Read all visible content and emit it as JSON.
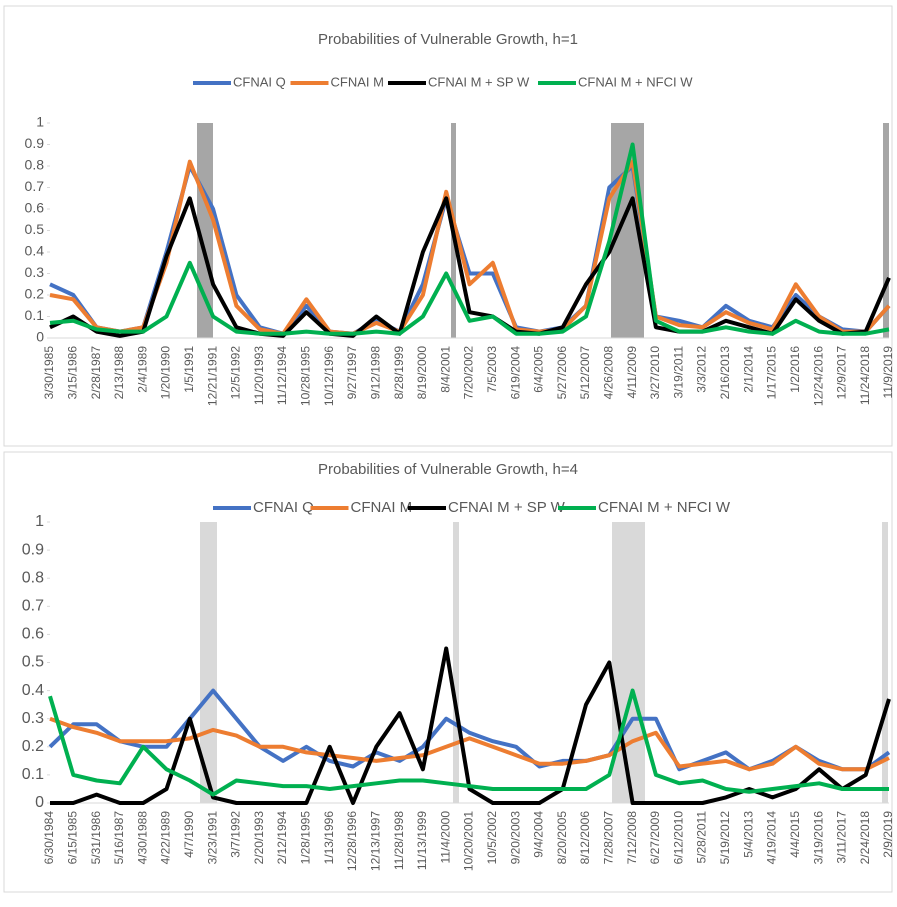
{
  "chart_data": [
    {
      "type": "line",
      "title": "Probabilities of Vulnerable Growth, h=1",
      "categories": [
        "3/30/1985",
        "3/15/1986",
        "2/28/1987",
        "2/13/1988",
        "2/4/1989",
        "1/20/1990",
        "1/5/1991",
        "12/21/1991",
        "12/5/1992",
        "11/20/1993",
        "11/12/1994",
        "10/28/1995",
        "10/12/1996",
        "9/27/1997",
        "9/12/1998",
        "8/28/1999",
        "8/19/2000",
        "8/4/2001",
        "7/20/2002",
        "7/5/2003",
        "6/19/2004",
        "6/4/2005",
        "5/27/2006",
        "5/12/2007",
        "4/26/2008",
        "4/11/2009",
        "3/27/2010",
        "3/19/2011",
        "3/3/2012",
        "2/16/2013",
        "2/1/2014",
        "1/17/2015",
        "1/2/2016",
        "12/24/2016",
        "12/9/2017",
        "11/24/2018",
        "11/9/2019"
      ],
      "series": [
        {
          "name": "CFNAI Q",
          "color": "#4472c4",
          "values": [
            0.25,
            0.2,
            0.05,
            0.03,
            0.05,
            0.4,
            0.8,
            0.6,
            0.2,
            0.05,
            0.02,
            0.15,
            0.03,
            0.02,
            0.08,
            0.03,
            0.25,
            0.65,
            0.3,
            0.3,
            0.05,
            0.03,
            0.05,
            0.15,
            0.7,
            0.8,
            0.1,
            0.08,
            0.05,
            0.15,
            0.08,
            0.05,
            0.2,
            0.1,
            0.04,
            0.03,
            0.15
          ]
        },
        {
          "name": "CFNAI M",
          "color": "#ed7d31",
          "values": [
            0.2,
            0.18,
            0.05,
            0.03,
            0.05,
            0.35,
            0.82,
            0.55,
            0.15,
            0.04,
            0.02,
            0.18,
            0.03,
            0.02,
            0.07,
            0.03,
            0.2,
            0.68,
            0.25,
            0.35,
            0.04,
            0.03,
            0.04,
            0.15,
            0.65,
            0.82,
            0.1,
            0.06,
            0.05,
            0.12,
            0.07,
            0.04,
            0.25,
            0.1,
            0.03,
            0.03,
            0.15
          ]
        },
        {
          "name": "CFNAI M + SP W",
          "color": "#000000",
          "values": [
            0.05,
            0.1,
            0.03,
            0.01,
            0.03,
            0.38,
            0.65,
            0.25,
            0.05,
            0.02,
            0.01,
            0.12,
            0.02,
            0.01,
            0.1,
            0.02,
            0.4,
            0.65,
            0.12,
            0.1,
            0.03,
            0.02,
            0.05,
            0.25,
            0.4,
            0.65,
            0.05,
            0.03,
            0.03,
            0.08,
            0.05,
            0.02,
            0.18,
            0.08,
            0.02,
            0.03,
            0.28
          ]
        },
        {
          "name": "CFNAI M + NFCI W",
          "color": "#00b050",
          "values": [
            0.07,
            0.08,
            0.04,
            0.03,
            0.03,
            0.1,
            0.35,
            0.1,
            0.03,
            0.02,
            0.02,
            0.03,
            0.02,
            0.02,
            0.03,
            0.02,
            0.1,
            0.3,
            0.08,
            0.1,
            0.02,
            0.02,
            0.03,
            0.1,
            0.45,
            0.9,
            0.08,
            0.03,
            0.03,
            0.05,
            0.03,
            0.02,
            0.08,
            0.03,
            0.02,
            0.02,
            0.04
          ]
        }
      ],
      "ylim": [
        0,
        1
      ],
      "yticks": [
        0,
        0.1,
        0.2,
        0.3,
        0.4,
        0.5,
        0.6,
        0.7,
        0.8,
        0.9,
        1
      ],
      "legend": "top"
    },
    {
      "type": "line",
      "title": "Probabilities of Vulnerable Growth, h=4",
      "categories": [
        "6/30/1984",
        "6/15/1985",
        "5/31/1986",
        "5/16/1987",
        "4/30/1988",
        "4/22/1989",
        "4/7/1990",
        "3/23/1991",
        "3/7/1992",
        "2/20/1993",
        "2/12/1994",
        "1/28/1995",
        "1/13/1996",
        "12/28/1996",
        "12/13/1997",
        "11/28/1998",
        "11/13/1999",
        "11/4/2000",
        "10/20/2001",
        "10/5/2002",
        "9/20/2003",
        "9/4/2004",
        "8/20/2005",
        "8/12/2006",
        "7/28/2007",
        "7/12/2008",
        "6/27/2009",
        "6/12/2010",
        "5/28/2011",
        "5/19/2012",
        "5/4/2013",
        "4/19/2014",
        "4/4/2015",
        "3/19/2016",
        "3/11/2017",
        "2/24/2018",
        "2/9/2019"
      ],
      "series": [
        {
          "name": "CFNAI Q",
          "color": "#4472c4",
          "values": [
            0.2,
            0.28,
            0.28,
            0.22,
            0.2,
            0.2,
            0.3,
            0.4,
            0.3,
            0.2,
            0.15,
            0.2,
            0.15,
            0.13,
            0.18,
            0.15,
            0.2,
            0.3,
            0.25,
            0.22,
            0.2,
            0.13,
            0.15,
            0.15,
            0.17,
            0.3,
            0.3,
            0.12,
            0.15,
            0.18,
            0.12,
            0.15,
            0.2,
            0.15,
            0.12,
            0.12,
            0.18
          ]
        },
        {
          "name": "CFNAI M",
          "color": "#ed7d31",
          "values": [
            0.3,
            0.27,
            0.25,
            0.22,
            0.22,
            0.22,
            0.23,
            0.26,
            0.24,
            0.2,
            0.2,
            0.18,
            0.17,
            0.16,
            0.15,
            0.16,
            0.17,
            0.2,
            0.23,
            0.2,
            0.17,
            0.14,
            0.14,
            0.15,
            0.17,
            0.22,
            0.25,
            0.13,
            0.14,
            0.15,
            0.12,
            0.14,
            0.2,
            0.14,
            0.12,
            0.12,
            0.16
          ]
        },
        {
          "name": "CFNAI M + SP W",
          "color": "#000000",
          "values": [
            0,
            0,
            0.03,
            0,
            0,
            0.05,
            0.3,
            0.02,
            0,
            0,
            0,
            0,
            0.2,
            0,
            0.2,
            0.32,
            0.12,
            0.55,
            0.05,
            0,
            0,
            0,
            0.05,
            0.35,
            0.5,
            0,
            0,
            0,
            0,
            0.02,
            0.05,
            0.02,
            0.05,
            0.12,
            0.05,
            0.1,
            0.37
          ]
        },
        {
          "name": "CFNAI M + NFCI W",
          "color": "#00b050",
          "values": [
            0.38,
            0.1,
            0.08,
            0.07,
            0.2,
            0.12,
            0.08,
            0.03,
            0.08,
            0.07,
            0.06,
            0.06,
            0.05,
            0.06,
            0.07,
            0.08,
            0.08,
            0.07,
            0.06,
            0.05,
            0.05,
            0.05,
            0.05,
            0.05,
            0.1,
            0.4,
            0.1,
            0.07,
            0.08,
            0.05,
            0.04,
            0.05,
            0.06,
            0.07,
            0.05,
            0.05,
            0.05
          ]
        }
      ],
      "ylim": [
        0,
        1
      ],
      "yticks": [
        0,
        0.1,
        0.2,
        0.3,
        0.4,
        0.5,
        0.6,
        0.7,
        0.8,
        0.9,
        1
      ],
      "legend": "top"
    }
  ]
}
